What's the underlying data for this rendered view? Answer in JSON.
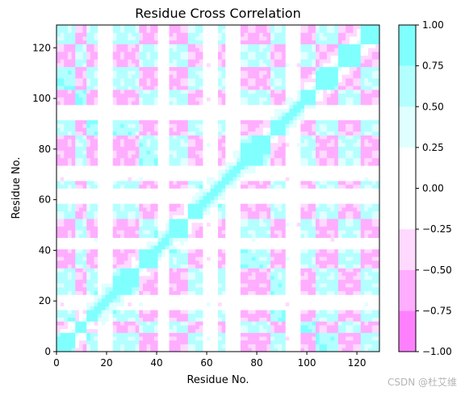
{
  "chart_data": {
    "type": "heatmap",
    "subtype": "filled-contour",
    "title": "Residue Cross Correlation",
    "xlabel": "Residue No.",
    "ylabel": "Residue No.",
    "xlim": [
      0,
      129
    ],
    "ylim": [
      0,
      129
    ],
    "x_ticks": [
      0,
      20,
      40,
      60,
      80,
      100,
      120
    ],
    "y_ticks": [
      0,
      20,
      40,
      60,
      80,
      100,
      120
    ],
    "grid": false,
    "colorbar": {
      "ticks": [
        -1.0,
        -0.75,
        -0.5,
        -0.25,
        0.0,
        0.25,
        0.5,
        0.75,
        1.0
      ],
      "tick_labels": [
        "−1.00",
        "−0.75",
        "−0.50",
        "−0.25",
        "0.00",
        "0.25",
        "0.50",
        "0.75",
        "1.00"
      ],
      "levels": [
        -1.0,
        -0.75,
        -0.5,
        -0.25,
        0.25,
        0.5,
        0.75,
        1.0
      ],
      "colors": [
        "#ff80ff",
        "#ffadff",
        "#ffd9ff",
        "#ffffff",
        "#e0ffff",
        "#b3ffff",
        "#80ffff"
      ]
    },
    "pattern": {
      "blocks": [
        0,
        7,
        12,
        17,
        23,
        33,
        40,
        45,
        53,
        59,
        64,
        68,
        73,
        85,
        91,
        98,
        103,
        113,
        122,
        129
      ],
      "groups": [
        1,
        -1,
        1,
        0,
        1,
        -1,
        0,
        -1,
        1,
        0,
        1,
        0,
        -1,
        1,
        0,
        -1,
        1,
        -1,
        1
      ],
      "diagonal_width": 3.5,
      "antidiagonal_offset": 22
    }
  },
  "watermark": "CSDN @杜艾维"
}
